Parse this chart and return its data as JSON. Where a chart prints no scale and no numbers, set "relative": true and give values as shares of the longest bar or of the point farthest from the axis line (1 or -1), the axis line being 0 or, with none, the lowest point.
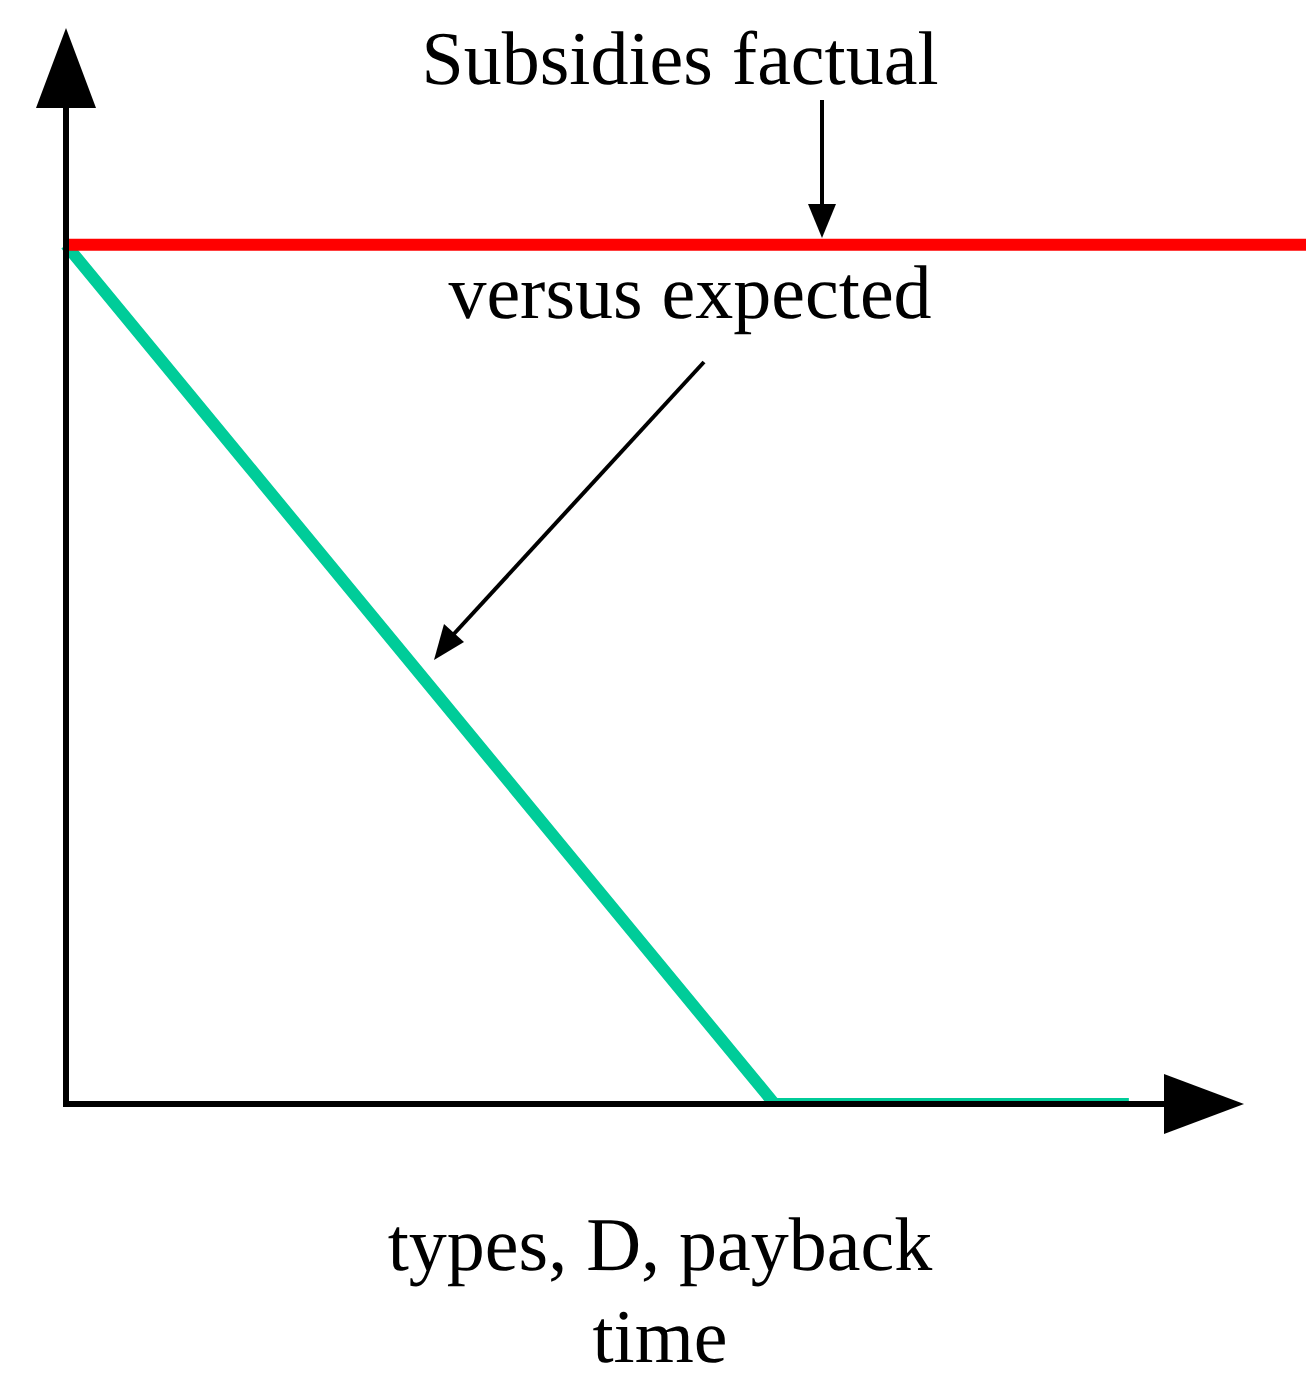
{
  "chart_data": {
    "type": "line",
    "relative": true,
    "xlabel": "types, D, payback time",
    "annotations": [
      "Subsidies factual",
      "versus expected"
    ],
    "categories": [
      null,
      null,
      null,
      null,
      null,
      null,
      null,
      null
    ],
    "series": [
      {
        "color": "#ff0000",
        "values": [
          1,
          1,
          1,
          1,
          1,
          1,
          1,
          1
        ]
      },
      {
        "color": "#00cc99",
        "values": [
          1,
          0.75,
          0.5,
          0.25,
          0,
          0,
          0,
          null
        ]
      }
    ]
  }
}
